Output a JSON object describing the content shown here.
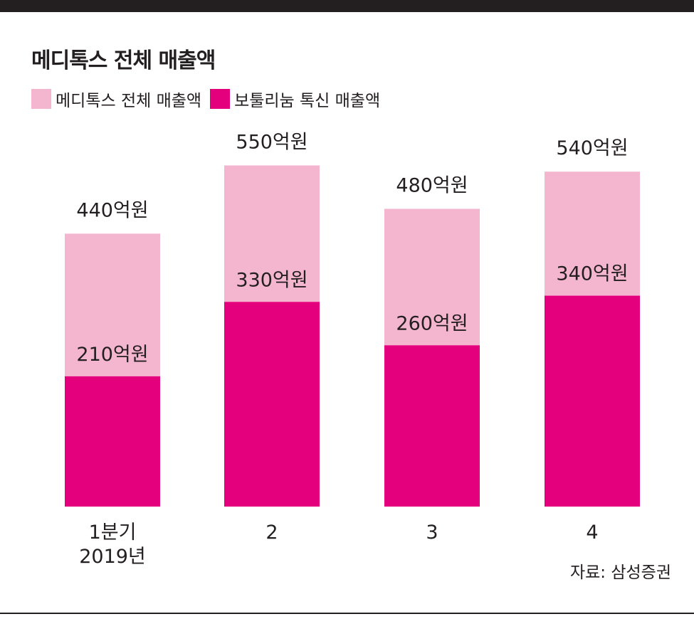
{
  "title": "메디톡스 전체 매출액",
  "source": "자료: 삼성증권",
  "colors": {
    "total": "#f4b5cf",
    "botulinum": "#e4007c",
    "text": "#231f20"
  },
  "chart_data": {
    "type": "bar",
    "title": "메디톡스 전체 매출액",
    "categories": [
      "1분기\n2019년",
      "2",
      "3",
      "4"
    ],
    "series": [
      {
        "name": "메디톡스 전체 매출액",
        "values": [
          440,
          550,
          480,
          540
        ],
        "labels": [
          "440억원",
          "550억원",
          "480억원",
          "540억원"
        ]
      },
      {
        "name": "보툴리눔 톡신 매출액",
        "values": [
          210,
          330,
          260,
          340
        ],
        "labels": [
          "210억원",
          "330억원",
          "260억원",
          "340억원"
        ]
      }
    ],
    "unit": "억원",
    "legend_position": "top-left",
    "grid": false
  }
}
